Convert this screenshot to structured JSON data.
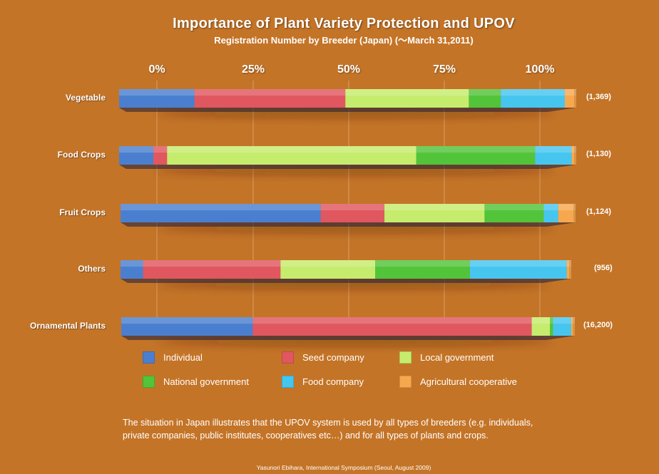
{
  "header": {
    "title": "Importance of Plant Variety Protection and UPOV",
    "subtitle": "Registration Number by Breeder (Japan) (～March 31,2011)"
  },
  "caption": {
    "line1": "The situation in Japan illustrates that the UPOV system is used by all types of breeders (e.g. individuals,",
    "line2": "private companies,  public institutes, cooperatives etc…) and for all types of plants and crops."
  },
  "credit": "Yasunori Ebihara, International Symposium (Seoul, August 2009)",
  "colors": {
    "background": "#c47427",
    "individual": "#4a7fd0",
    "seed_company": "#e0575f",
    "local_government": "#c6ec6d",
    "national_government": "#52c43a",
    "food_company": "#46c6ef",
    "agricultural_cooperative": "#f7a84f"
  },
  "chart_data": {
    "type": "bar",
    "orientation": "horizontal",
    "stacked": true,
    "normalized": true,
    "title": "Importance of Plant Variety Protection and UPOV",
    "subtitle": "Registration Number by Breeder (Japan) (～March 31,2011)",
    "xlim": [
      0,
      100
    ],
    "x_ticks": [
      "0%",
      "25%",
      "50%",
      "75%",
      "100%"
    ],
    "grid": true,
    "legend_position": "bottom",
    "categories": [
      "Vegetable",
      "Food Crops",
      "Fruit Crops",
      "Others",
      "Ornamental Plants"
    ],
    "totals": [
      "(1,369)",
      "(1,130)",
      "(1,124)",
      "(956)",
      "(16,200)"
    ],
    "series": [
      {
        "name": "Individual",
        "color": "#4a7fd0",
        "values": [
          16.5,
          7.5,
          44,
          5,
          29
        ]
      },
      {
        "name": "Seed company",
        "color": "#e0575f",
        "values": [
          33,
          3,
          14,
          30.5,
          61.5
        ]
      },
      {
        "name": "Local government",
        "color": "#c6ec6d",
        "values": [
          27,
          54.5,
          22,
          21,
          4
        ]
      },
      {
        "name": "National government",
        "color": "#52c43a",
        "values": [
          7,
          26,
          13,
          21,
          0.7
        ]
      },
      {
        "name": "Food company",
        "color": "#46c6ef",
        "values": [
          14,
          8,
          3.2,
          21.5,
          4
        ]
      },
      {
        "name": "Agricultural cooperative",
        "color": "#f7a84f",
        "values": [
          2.5,
          1,
          3.8,
          1,
          0.8
        ]
      }
    ]
  }
}
